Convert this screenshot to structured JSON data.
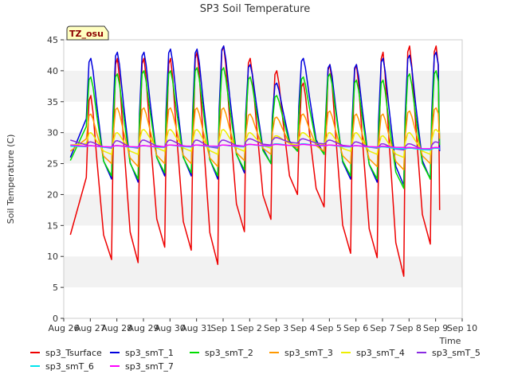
{
  "chart_data": {
    "type": "line",
    "title": "SP3 Soil Temperature",
    "xlabel": "Time",
    "ylabel": "Soil Temperature (C)",
    "ylim": [
      0,
      45
    ],
    "xlim": [
      0,
      15
    ],
    "yticks": [
      0,
      5,
      10,
      15,
      20,
      25,
      30,
      35,
      40,
      45
    ],
    "xtick_labels": [
      "Aug 26",
      "Aug 27",
      "Aug 28",
      "Aug 29",
      "Aug 30",
      "Aug 31",
      "Sep 1",
      "Sep 2",
      "Sep 3",
      "Sep 4",
      "Sep 5",
      "Sep 6",
      "Sep 7",
      "Sep 8",
      "Sep 9",
      "Sep 10"
    ],
    "annotation": "TZ_osu",
    "grid": "horizontal bands",
    "legend_position": "bottom",
    "day_count": 14,
    "x_start_day": 0.25,
    "series": [
      {
        "name": "sp3_Tsurface",
        "color": "#ee0000",
        "daily_max": [
          36,
          42,
          42,
          42,
          43,
          44,
          42,
          40,
          38,
          41,
          41,
          43,
          44,
          44
        ],
        "daily_min": [
          9.5,
          9,
          11.5,
          11,
          8.7,
          14,
          16,
          20,
          18,
          10.5,
          9.8,
          6.8,
          12,
          12.5
        ],
        "start": 13.5,
        "end": 17.5
      },
      {
        "name": "sp3_smT_1",
        "color": "#0000dd",
        "daily_max": [
          42,
          43,
          43,
          43.5,
          43.5,
          44,
          41,
          38,
          42,
          41,
          41,
          42,
          42.5,
          43
        ],
        "daily_min": [
          22.5,
          22,
          23,
          23,
          22.5,
          23.5,
          25,
          27,
          26.5,
          22.5,
          22,
          21.5,
          22.5,
          23
        ],
        "start": 26,
        "end": 27
      },
      {
        "name": "sp3_smT_2",
        "color": "#00dd00",
        "daily_max": [
          39,
          39.5,
          40,
          40,
          40.5,
          40.5,
          39,
          36,
          39,
          39.5,
          38.5,
          38.5,
          39.5,
          40
        ],
        "daily_min": [
          23,
          22.5,
          23.5,
          23.5,
          23,
          24,
          25,
          27,
          26.5,
          23,
          22.5,
          21,
          22.5,
          23
        ],
        "start": 25.5,
        "end": 28
      },
      {
        "name": "sp3_smT_3",
        "color": "#ff9900",
        "daily_max": [
          33,
          34,
          34,
          34,
          34,
          34,
          33,
          32.5,
          33,
          33.5,
          33,
          33,
          33.5,
          34
        ],
        "daily_min": [
          25,
          24.5,
          25,
          25,
          24.5,
          25.5,
          26.5,
          27.5,
          27,
          25,
          24.5,
          24,
          25,
          25
        ],
        "start": 27,
        "end": 29
      },
      {
        "name": "sp3_smT_4",
        "color": "#eeee00",
        "daily_max": [
          30,
          30,
          30.5,
          30.5,
          30.5,
          30.5,
          30,
          29.5,
          30,
          30,
          30,
          29.5,
          30,
          30.5
        ],
        "daily_min": [
          26.5,
          26.5,
          27,
          27,
          26.5,
          27,
          27.5,
          28,
          28,
          27,
          26.5,
          26,
          26.5,
          27
        ],
        "start": 28,
        "end": 30
      },
      {
        "name": "sp3_smT_5",
        "color": "#8a2be2",
        "daily_max": [
          28.5,
          28.7,
          28.8,
          28.8,
          28.8,
          28.8,
          29,
          29.2,
          29,
          28.8,
          28.5,
          28.2,
          28.2,
          28.5
        ],
        "daily_min": [
          27.5,
          27.5,
          27.7,
          27.7,
          27.5,
          27.8,
          28,
          28.3,
          28.2,
          27.8,
          27.5,
          27.2,
          27.2,
          27.4
        ],
        "start": 28.8,
        "end": 28.6
      },
      {
        "name": "sp3_smT_6",
        "color": "#00e5ee",
        "daily_max": [
          27.9,
          27.9,
          27.9,
          28,
          28,
          28,
          28.1,
          28.2,
          28.2,
          28,
          27.9,
          27.7,
          27.5,
          27.5
        ],
        "daily_min": [
          27.6,
          27.6,
          27.6,
          27.7,
          27.7,
          27.7,
          27.8,
          27.9,
          27.9,
          27.7,
          27.6,
          27.4,
          27.2,
          27.2
        ],
        "start": 27.8,
        "end": 27.3
      },
      {
        "name": "sp3_smT_7",
        "color": "#ff00ff",
        "daily_max": [
          27.9,
          27.9,
          27.9,
          28,
          28,
          28,
          28.1,
          28.1,
          28.1,
          28,
          27.9,
          27.8,
          27.6,
          27.6
        ],
        "daily_min": [
          27.7,
          27.7,
          27.7,
          27.8,
          27.8,
          27.8,
          27.9,
          27.9,
          27.9,
          27.8,
          27.7,
          27.6,
          27.4,
          27.4
        ],
        "start": 28,
        "end": 27.5
      }
    ]
  }
}
